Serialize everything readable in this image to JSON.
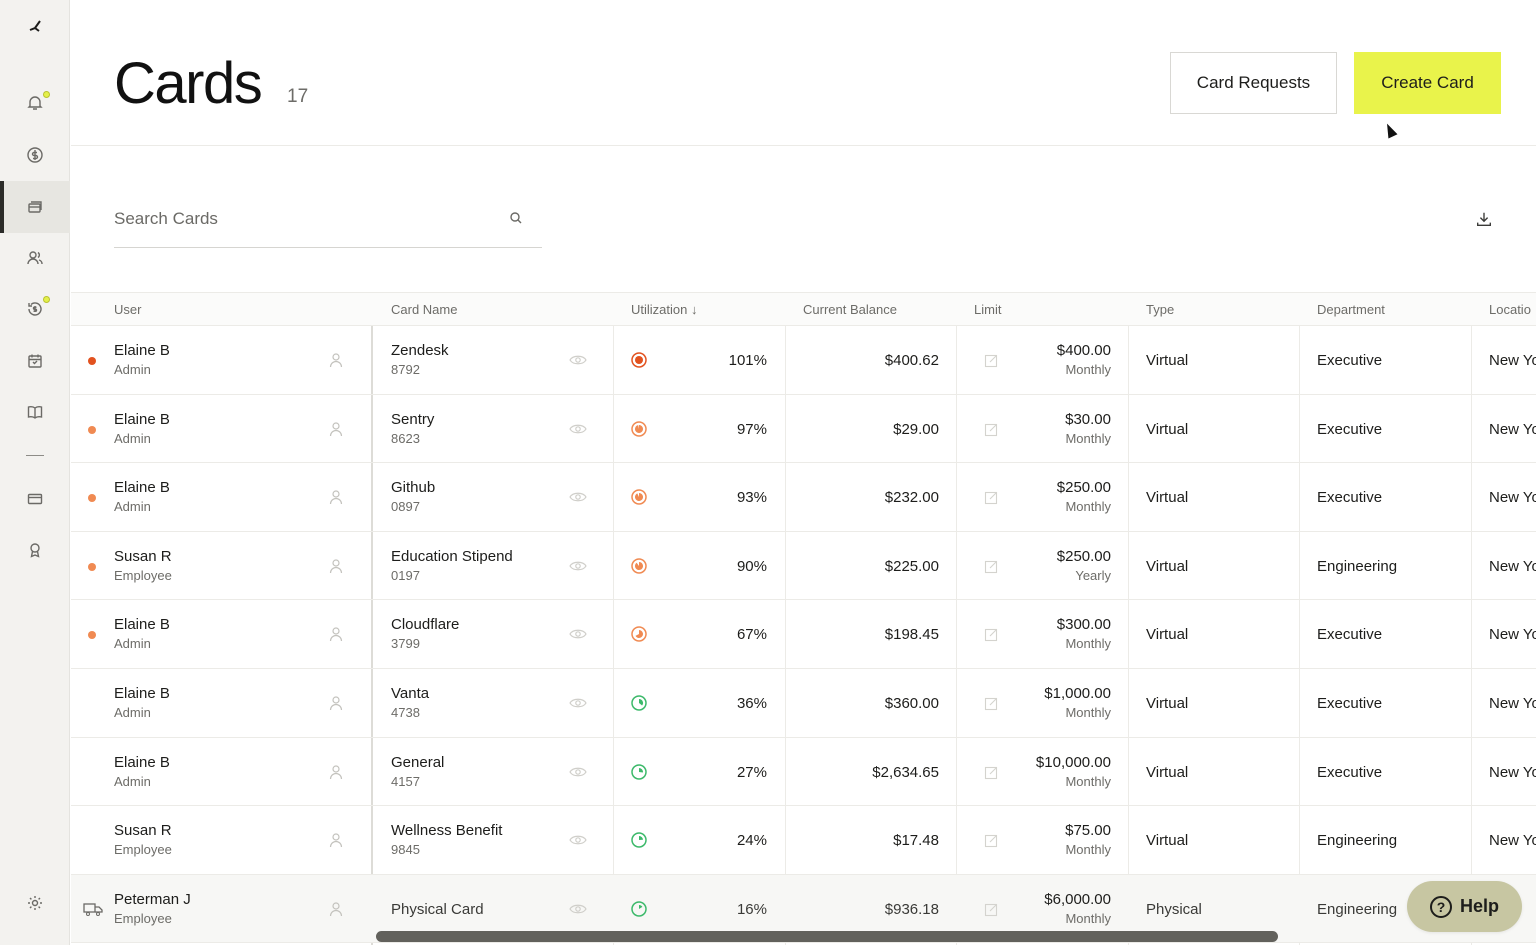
{
  "header": {
    "title": "Cards",
    "count": "17",
    "card_requests_label": "Card Requests",
    "create_card_label": "Create Card"
  },
  "search": {
    "placeholder": "Search Cards"
  },
  "columns": [
    "User",
    "Card Name",
    "Utilization ↓",
    "Current Balance",
    "Limit",
    "Type",
    "Department",
    "Locatio"
  ],
  "rows": [
    {
      "user": "Elaine B",
      "role": "Admin",
      "card": "Zendesk",
      "number": "8792",
      "util": "101%",
      "balance": "$400.62",
      "limit": "$400.00",
      "period": "Monthly",
      "type": "Virtual",
      "dept": "Executive",
      "loc": "New Yo"
    },
    {
      "user": "Elaine B",
      "role": "Admin",
      "card": "Sentry",
      "number": "8623",
      "util": "97%",
      "balance": "$29.00",
      "limit": "$30.00",
      "period": "Monthly",
      "type": "Virtual",
      "dept": "Executive",
      "loc": "New Yo"
    },
    {
      "user": "Elaine B",
      "role": "Admin",
      "card": "Github",
      "number": "0897",
      "util": "93%",
      "balance": "$232.00",
      "limit": "$250.00",
      "period": "Monthly",
      "type": "Virtual",
      "dept": "Executive",
      "loc": "New Yo"
    },
    {
      "user": "Susan R",
      "role": "Employee",
      "card": "Education Stipend",
      "number": "0197",
      "util": "90%",
      "balance": "$225.00",
      "limit": "$250.00",
      "period": "Yearly",
      "type": "Virtual",
      "dept": "Engineering",
      "loc": "New Yo"
    },
    {
      "user": "Elaine B",
      "role": "Admin",
      "card": "Cloudflare",
      "number": "3799",
      "util": "67%",
      "balance": "$198.45",
      "limit": "$300.00",
      "period": "Monthly",
      "type": "Virtual",
      "dept": "Executive",
      "loc": "New Yo"
    },
    {
      "user": "Elaine B",
      "role": "Admin",
      "card": "Vanta",
      "number": "4738",
      "util": "36%",
      "balance": "$360.00",
      "limit": "$1,000.00",
      "period": "Monthly",
      "type": "Virtual",
      "dept": "Executive",
      "loc": "New Yo"
    },
    {
      "user": "Elaine B",
      "role": "Admin",
      "card": "General",
      "number": "4157",
      "util": "27%",
      "balance": "$2,634.65",
      "limit": "$10,000.00",
      "period": "Monthly",
      "type": "Virtual",
      "dept": "Executive",
      "loc": "New Yo"
    },
    {
      "user": "Susan R",
      "role": "Employee",
      "card": "Wellness Benefit",
      "number": "9845",
      "util": "24%",
      "balance": "$17.48",
      "limit": "$75.00",
      "period": "Monthly",
      "type": "Virtual",
      "dept": "Engineering",
      "loc": "New Yo"
    },
    {
      "user": "Peterman J",
      "role": "Employee",
      "card": "Physical Card",
      "number": "",
      "util": "16%",
      "balance": "$936.18",
      "limit": "$6,000.00",
      "period": "Monthly",
      "type": "Physical",
      "dept": "Engineering",
      "loc": "Yo"
    }
  ],
  "help": {
    "label": "Help"
  },
  "colors": {
    "accent": "#e9f34b",
    "danger": "#e2521f",
    "warning": "#f08a52",
    "ok": "#3cb96a"
  }
}
